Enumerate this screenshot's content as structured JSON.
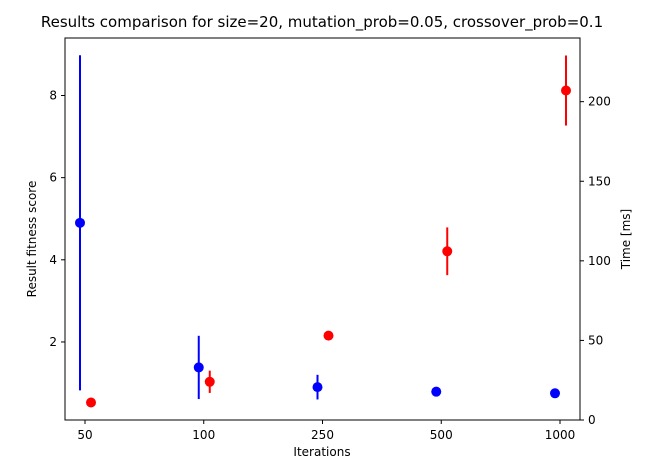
{
  "chart_data": {
    "type": "scatter",
    "title": "Results comparison for size=20, mutation_prob=0.05, crossover_prob=0.1",
    "xlabel": "Iterations",
    "ylabel": "Result fitness score",
    "y2label": "Time [ms]",
    "categories": [
      "50",
      "100",
      "250",
      "500",
      "1000"
    ],
    "ylim": [
      0.1,
      9.4
    ],
    "y2lim": [
      0,
      240
    ],
    "yticks": [
      "2",
      "4",
      "6",
      "8"
    ],
    "y2ticks": [
      "0",
      "50",
      "100",
      "150",
      "200"
    ],
    "grid": false,
    "series": [
      {
        "axis": "left",
        "color": "#0000ff",
        "values": [
          4.9,
          1.38,
          0.9,
          0.79,
          0.75
        ],
        "errors": [
          4.08,
          0.77,
          0.3,
          0.1,
          0.05
        ]
      },
      {
        "axis": "right",
        "color": "#ff0000",
        "values": [
          11,
          24,
          53,
          106,
          207
        ],
        "errors": [
          0,
          7,
          0,
          15,
          22
        ]
      }
    ]
  }
}
